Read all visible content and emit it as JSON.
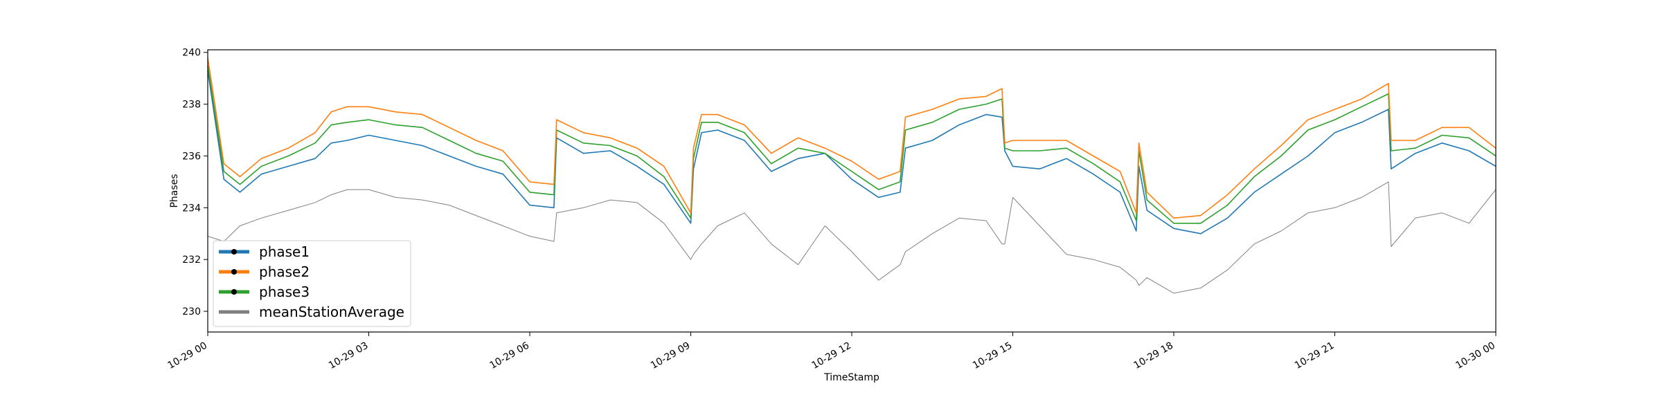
{
  "chart_data": {
    "type": "line",
    "title": "",
    "xlabel": "TimeStamp",
    "ylabel": "Phases",
    "xlim": [
      "10-29 00:00",
      "10-30 00:00"
    ],
    "ylim": [
      229.2,
      240.1
    ],
    "x_tick_labels": [
      "10-29 00",
      "10-29 03",
      "10-29 06",
      "10-29 09",
      "10-29 12",
      "10-29 15",
      "10-29 18",
      "10-29 21",
      "10-30 00"
    ],
    "x_tick_hours": [
      0,
      3,
      6,
      9,
      12,
      15,
      18,
      21,
      24
    ],
    "y_ticks": [
      230,
      232,
      234,
      236,
      238,
      240
    ],
    "grid": false,
    "legend_position": "lower-left",
    "x_hours": [
      0,
      0.3,
      0.6,
      1,
      1.5,
      2,
      2.3,
      2.6,
      3,
      3.5,
      4,
      4.5,
      5,
      5.5,
      6,
      6.45,
      6.5,
      7,
      7.5,
      8,
      8.5,
      9,
      9.05,
      9.2,
      9.5,
      10,
      10.5,
      11,
      11.5,
      12,
      12.5,
      12.9,
      13,
      13.5,
      14,
      14.5,
      14.8,
      14.85,
      15,
      15.5,
      16,
      16.5,
      17,
      17.3,
      17.35,
      17.5,
      18,
      18.5,
      19,
      19.5,
      20,
      20.5,
      21,
      21.5,
      22,
      22.05,
      22.5,
      23,
      23.5,
      24
    ],
    "series": [
      {
        "name": "phase1",
        "color": "#1f77b4",
        "marker": "o",
        "values": [
          239.3,
          235.1,
          234.6,
          235.3,
          235.6,
          235.9,
          236.5,
          236.6,
          236.8,
          236.6,
          236.4,
          236.0,
          235.6,
          235.3,
          234.1,
          234.0,
          236.7,
          236.1,
          236.2,
          235.6,
          234.9,
          233.4,
          235.5,
          236.9,
          237.0,
          236.6,
          235.4,
          235.9,
          236.1,
          235.1,
          234.4,
          234.6,
          236.3,
          236.6,
          237.2,
          237.6,
          237.5,
          236.2,
          235.6,
          235.5,
          235.9,
          235.3,
          234.6,
          233.1,
          235.6,
          233.9,
          233.2,
          233.0,
          233.6,
          234.6,
          235.3,
          236.0,
          236.9,
          237.3,
          237.8,
          235.5,
          236.1,
          236.5,
          236.2,
          235.6
        ]
      },
      {
        "name": "phase2",
        "color": "#ff7f0e",
        "marker": "o",
        "values": [
          239.8,
          235.7,
          235.2,
          235.9,
          236.3,
          236.9,
          237.7,
          237.9,
          237.9,
          237.7,
          237.6,
          237.1,
          236.6,
          236.2,
          235.0,
          234.9,
          237.4,
          236.9,
          236.7,
          236.3,
          235.6,
          233.8,
          236.3,
          237.6,
          237.6,
          237.2,
          236.1,
          236.7,
          236.3,
          235.8,
          235.1,
          235.4,
          237.5,
          237.8,
          238.2,
          238.3,
          238.6,
          236.5,
          236.6,
          236.6,
          236.6,
          236.0,
          235.4,
          233.8,
          236.5,
          234.6,
          233.6,
          233.7,
          234.5,
          235.5,
          236.4,
          237.4,
          237.8,
          238.2,
          238.8,
          236.6,
          236.6,
          237.1,
          237.1,
          236.3
        ]
      },
      {
        "name": "phase3",
        "color": "#2ca02c",
        "marker": "o",
        "values": [
          239.5,
          235.4,
          234.9,
          235.6,
          236.0,
          236.5,
          237.2,
          237.3,
          237.4,
          237.2,
          237.1,
          236.6,
          236.1,
          235.8,
          234.6,
          234.5,
          237.0,
          236.5,
          236.4,
          236.0,
          235.2,
          233.6,
          235.9,
          237.3,
          237.3,
          236.9,
          235.7,
          236.3,
          236.1,
          235.4,
          234.7,
          235.0,
          237.0,
          237.3,
          237.8,
          238.0,
          238.2,
          236.3,
          236.2,
          236.2,
          236.3,
          235.7,
          235.0,
          233.5,
          236.2,
          234.3,
          233.4,
          233.4,
          234.1,
          235.2,
          236.0,
          237.0,
          237.4,
          237.9,
          238.4,
          236.2,
          236.3,
          236.8,
          236.7,
          236.0
        ]
      },
      {
        "name": "meanStationAverage",
        "color": "#808080",
        "marker": "",
        "values": [
          232.9,
          232.7,
          233.3,
          233.6,
          233.9,
          234.2,
          234.5,
          234.7,
          234.7,
          234.4,
          234.3,
          234.1,
          233.7,
          233.3,
          232.9,
          232.7,
          233.8,
          234.0,
          234.3,
          234.2,
          233.4,
          232.0,
          232.2,
          232.6,
          233.3,
          233.8,
          232.6,
          231.8,
          233.3,
          232.3,
          231.2,
          231.8,
          232.3,
          233.0,
          233.6,
          233.5,
          232.6,
          232.6,
          234.4,
          233.3,
          232.2,
          232.0,
          231.7,
          231.2,
          231.0,
          231.3,
          230.7,
          230.9,
          231.6,
          232.6,
          233.1,
          233.8,
          234.0,
          234.4,
          235.0,
          232.5,
          233.6,
          233.8,
          233.4,
          234.7
        ]
      }
    ]
  }
}
